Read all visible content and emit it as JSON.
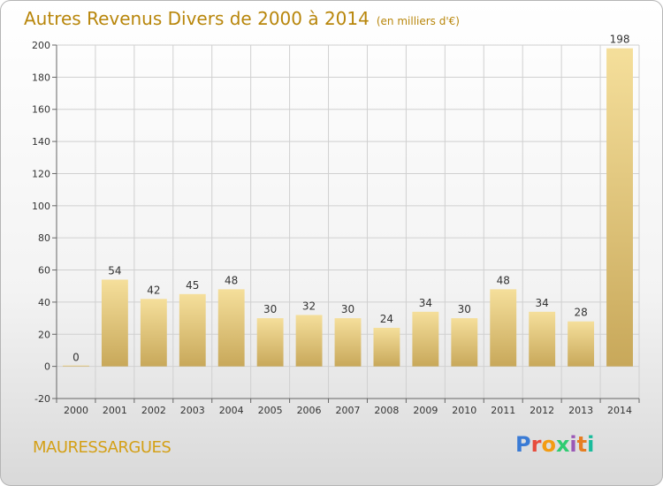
{
  "title": {
    "main": "Autres Revenus Divers de 2000 à 2014",
    "sub": "(en milliers d'€)"
  },
  "place_name": "MAURESSARGUES",
  "logo": {
    "text": "Proxiti",
    "colors": [
      "#3a7bd5",
      "#e74c3c",
      "#f39c12",
      "#2ecc71",
      "#9b59b6",
      "#e67e22",
      "#1abc9c"
    ]
  },
  "colors": {
    "bar_top": "#f5df9b",
    "bar_bottom": "#c8a85a",
    "grid": "#d0d0d0",
    "title": "#b8860b"
  },
  "chart_data": {
    "type": "bar",
    "categories": [
      "2000",
      "2001",
      "2002",
      "2003",
      "2004",
      "2005",
      "2006",
      "2007",
      "2008",
      "2009",
      "2010",
      "2011",
      "2012",
      "2013",
      "2014"
    ],
    "values": [
      0,
      54,
      42,
      45,
      48,
      30,
      32,
      30,
      24,
      34,
      30,
      48,
      34,
      28,
      198
    ],
    "ylim": [
      -20,
      200
    ],
    "yticks": [
      -20,
      0,
      20,
      40,
      60,
      80,
      100,
      120,
      140,
      160,
      180,
      200
    ],
    "grid": true,
    "title": "Autres Revenus Divers de 2000 à 2014",
    "xlabel": "",
    "ylabel": ""
  }
}
